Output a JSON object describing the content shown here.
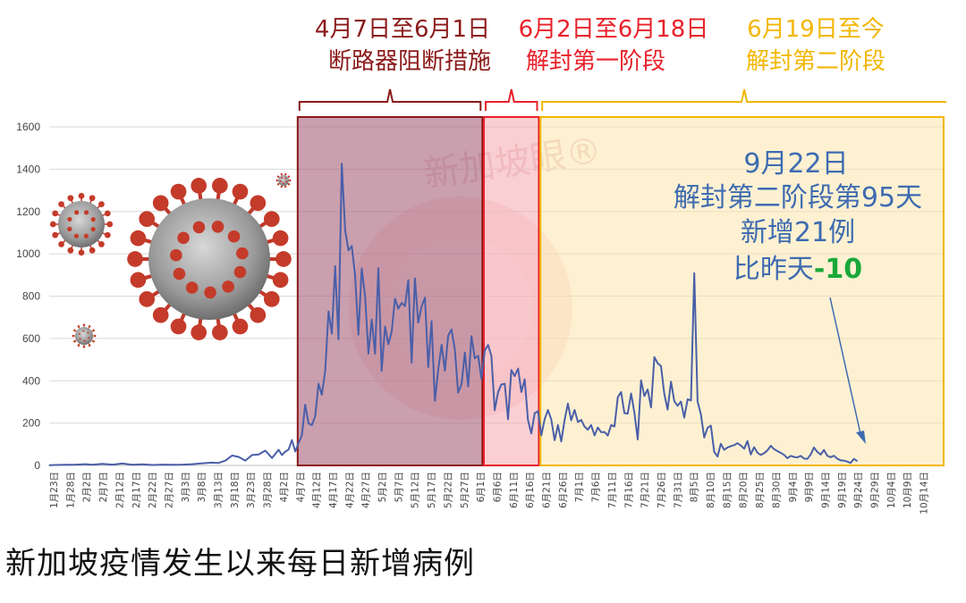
{
  "caption": "新加坡疫情发生以来每日新增病例",
  "watermark": "新加坡眼®",
  "phases": [
    {
      "line1": "4月7日至6月1日",
      "line2": "断路器阻断措施",
      "color": "#8b1a1a",
      "fill": "#a9647c"
    },
    {
      "line1": "6月2日至6月18日",
      "line2": "解封第一阶段",
      "color": "#e8212a",
      "fill": "#f4a7ae"
    },
    {
      "line1": "6月19日至今",
      "line2": "解封第二阶段",
      "color": "#f2b705",
      "fill": "#fbe3a6"
    }
  ],
  "annotation": {
    "date": "9月22日",
    "line2": "解封第二阶段第95天",
    "line3": "新增21例",
    "line4_prefix": "比昨天",
    "delta": "-10",
    "color": "#3e6bb0",
    "delta_color": "#1aa83a"
  },
  "virus_icons": [
    "coronavirus-icon"
  ],
  "chart_data": {
    "type": "line",
    "y_ticks": [
      0,
      200,
      400,
      600,
      800,
      1000,
      1200,
      1400,
      1600
    ],
    "ylim": [
      0,
      1600
    ],
    "x_tick_labels": [
      "1月23日",
      "1月28日",
      "2月2日",
      "2月7日",
      "2月12日",
      "2月17日",
      "2月22日",
      "2月27日",
      "3月3日",
      "3月8日",
      "3月13日",
      "3月18日",
      "3月23日",
      "3月28日",
      "4月2日",
      "4月7日",
      "4月12日",
      "4月17日",
      "4月22日",
      "4月27日",
      "5月2日",
      "5月7日",
      "5月12日",
      "5月17日",
      "5月22日",
      "5月27日",
      "6月1日",
      "6月6日",
      "6月11日",
      "6月16日",
      "6月21日",
      "6月26日",
      "7月1日",
      "7月6日",
      "7月11日",
      "7月16日",
      "7月21日",
      "7月26日",
      "7月31日",
      "8月5日",
      "8月10日",
      "8月15日",
      "8月20日",
      "8月25日",
      "8月30日",
      "9月4日",
      "9月9日",
      "9月14日",
      "9月19日",
      "9月24日",
      "9月29日",
      "10月4日",
      "10月9日",
      "10月14日"
    ],
    "x_start": "2020-01-23",
    "x_end": "2020-10-18",
    "grid": true,
    "series": [
      {
        "color": "#4a5fa8",
        "points": [
          [
            "2020-01-23",
            1
          ],
          [
            "2020-01-25",
            2
          ],
          [
            "2020-01-28",
            3
          ],
          [
            "2020-01-31",
            4
          ],
          [
            "2020-02-03",
            6
          ],
          [
            "2020-02-05",
            3
          ],
          [
            "2020-02-08",
            7
          ],
          [
            "2020-02-11",
            4
          ],
          [
            "2020-02-14",
            9
          ],
          [
            "2020-02-17",
            3
          ],
          [
            "2020-02-20",
            5
          ],
          [
            "2020-02-23",
            2
          ],
          [
            "2020-02-26",
            4
          ],
          [
            "2020-02-29",
            3
          ],
          [
            "2020-03-03",
            4
          ],
          [
            "2020-03-06",
            6
          ],
          [
            "2020-03-09",
            10
          ],
          [
            "2020-03-12",
            13
          ],
          [
            "2020-03-14",
            12
          ],
          [
            "2020-03-16",
            23
          ],
          [
            "2020-03-18",
            47
          ],
          [
            "2020-03-20",
            40
          ],
          [
            "2020-03-22",
            23
          ],
          [
            "2020-03-24",
            49
          ],
          [
            "2020-03-26",
            52
          ],
          [
            "2020-03-28",
            70
          ],
          [
            "2020-03-30",
            35
          ],
          [
            "2020-04-01",
            74
          ],
          [
            "2020-04-02",
            49
          ],
          [
            "2020-04-03",
            65
          ],
          [
            "2020-04-04",
            75
          ],
          [
            "2020-04-05",
            120
          ],
          [
            "2020-04-06",
            66
          ],
          [
            "2020-04-07",
            106
          ],
          [
            "2020-04-08",
            142
          ],
          [
            "2020-04-09",
            287
          ],
          [
            "2020-04-10",
            198
          ],
          [
            "2020-04-11",
            191
          ],
          [
            "2020-04-12",
            233
          ],
          [
            "2020-04-13",
            386
          ],
          [
            "2020-04-14",
            334
          ],
          [
            "2020-04-15",
            447
          ],
          [
            "2020-04-16",
            728
          ],
          [
            "2020-04-17",
            623
          ],
          [
            "2020-04-18",
            942
          ],
          [
            "2020-04-19",
            596
          ],
          [
            "2020-04-20",
            1426
          ],
          [
            "2020-04-21",
            1111
          ],
          [
            "2020-04-22",
            1016
          ],
          [
            "2020-04-23",
            1037
          ],
          [
            "2020-04-24",
            897
          ],
          [
            "2020-04-25",
            618
          ],
          [
            "2020-04-26",
            931
          ],
          [
            "2020-04-27",
            799
          ],
          [
            "2020-04-28",
            528
          ],
          [
            "2020-04-29",
            690
          ],
          [
            "2020-04-30",
            528
          ],
          [
            "2020-05-01",
            932
          ],
          [
            "2020-05-02",
            447
          ],
          [
            "2020-05-03",
            657
          ],
          [
            "2020-05-04",
            573
          ],
          [
            "2020-05-05",
            632
          ],
          [
            "2020-05-06",
            788
          ],
          [
            "2020-05-07",
            741
          ],
          [
            "2020-05-08",
            768
          ],
          [
            "2020-05-09",
            753
          ],
          [
            "2020-05-10",
            876
          ],
          [
            "2020-05-11",
            486
          ],
          [
            "2020-05-12",
            884
          ],
          [
            "2020-05-13",
            675
          ],
          [
            "2020-05-14",
            752
          ],
          [
            "2020-05-15",
            793
          ],
          [
            "2020-05-16",
            465
          ],
          [
            "2020-05-17",
            682
          ],
          [
            "2020-05-18",
            305
          ],
          [
            "2020-05-19",
            451
          ],
          [
            "2020-05-20",
            570
          ],
          [
            "2020-05-21",
            448
          ],
          [
            "2020-05-22",
            614
          ],
          [
            "2020-05-23",
            642
          ],
          [
            "2020-05-24",
            548
          ],
          [
            "2020-05-25",
            344
          ],
          [
            "2020-05-26",
            383
          ],
          [
            "2020-05-27",
            533
          ],
          [
            "2020-05-28",
            373
          ],
          [
            "2020-05-29",
            611
          ],
          [
            "2020-05-30",
            506
          ],
          [
            "2020-05-31",
            518
          ],
          [
            "2020-06-01",
            408
          ],
          [
            "2020-06-02",
            544
          ],
          [
            "2020-06-03",
            569
          ],
          [
            "2020-06-04",
            517
          ],
          [
            "2020-06-05",
            261
          ],
          [
            "2020-06-06",
            347
          ],
          [
            "2020-06-07",
            383
          ],
          [
            "2020-06-08",
            386
          ],
          [
            "2020-06-09",
            218
          ],
          [
            "2020-06-10",
            451
          ],
          [
            "2020-06-11",
            422
          ],
          [
            "2020-06-12",
            458
          ],
          [
            "2020-06-13",
            347
          ],
          [
            "2020-06-14",
            407
          ],
          [
            "2020-06-15",
            214
          ],
          [
            "2020-06-16",
            151
          ],
          [
            "2020-06-17",
            247
          ],
          [
            "2020-06-18",
            256
          ],
          [
            "2020-06-19",
            142
          ],
          [
            "2020-06-20",
            218
          ],
          [
            "2020-06-21",
            262
          ],
          [
            "2020-06-22",
            218
          ],
          [
            "2020-06-23",
            119
          ],
          [
            "2020-06-24",
            191
          ],
          [
            "2020-06-25",
            113
          ],
          [
            "2020-06-26",
            214
          ],
          [
            "2020-06-27",
            292
          ],
          [
            "2020-06-28",
            213
          ],
          [
            "2020-06-29",
            262
          ],
          [
            "2020-06-30",
            205
          ],
          [
            "2020-07-01",
            215
          ],
          [
            "2020-07-02",
            184
          ],
          [
            "2020-07-03",
            169
          ],
          [
            "2020-07-04",
            191
          ],
          [
            "2020-07-05",
            142
          ],
          [
            "2020-07-06",
            179
          ],
          [
            "2020-07-07",
            157
          ],
          [
            "2020-07-08",
            158
          ],
          [
            "2020-07-09",
            141
          ],
          [
            "2020-07-10",
            191
          ],
          [
            "2020-07-11",
            184
          ],
          [
            "2020-07-12",
            322
          ],
          [
            "2020-07-13",
            347
          ],
          [
            "2020-07-14",
            247
          ],
          [
            "2020-07-15",
            245
          ],
          [
            "2020-07-16",
            340
          ],
          [
            "2020-07-17",
            248
          ],
          [
            "2020-07-18",
            123
          ],
          [
            "2020-07-19",
            402
          ],
          [
            "2020-07-20",
            328
          ],
          [
            "2020-07-21",
            359
          ],
          [
            "2020-07-22",
            274
          ],
          [
            "2020-07-23",
            512
          ],
          [
            "2020-07-24",
            483
          ],
          [
            "2020-07-25",
            469
          ],
          [
            "2020-07-26",
            338
          ],
          [
            "2020-07-27",
            264
          ],
          [
            "2020-07-28",
            396
          ],
          [
            "2020-07-29",
            303
          ],
          [
            "2020-07-30",
            282
          ],
          [
            "2020-07-31",
            302
          ],
          [
            "2020-08-01",
            226
          ],
          [
            "2020-08-02",
            313
          ],
          [
            "2020-08-03",
            307
          ],
          [
            "2020-08-04",
            908
          ],
          [
            "2020-08-05",
            302
          ],
          [
            "2020-08-06",
            242
          ],
          [
            "2020-08-07",
            132
          ],
          [
            "2020-08-08",
            178
          ],
          [
            "2020-08-09",
            188
          ],
          [
            "2020-08-10",
            64
          ],
          [
            "2020-08-11",
            42
          ],
          [
            "2020-08-12",
            102
          ],
          [
            "2020-08-13",
            74
          ],
          [
            "2020-08-14",
            85
          ],
          [
            "2020-08-15",
            91
          ],
          [
            "2020-08-16",
            96
          ],
          [
            "2020-08-17",
            105
          ],
          [
            "2020-08-18",
            94
          ],
          [
            "2020-08-19",
            79
          ],
          [
            "2020-08-20",
            115
          ],
          [
            "2020-08-21",
            52
          ],
          [
            "2020-08-22",
            86
          ],
          [
            "2020-08-23",
            60
          ],
          [
            "2020-08-24",
            50
          ],
          [
            "2020-08-25",
            58
          ],
          [
            "2020-08-26",
            71
          ],
          [
            "2020-08-27",
            93
          ],
          [
            "2020-08-28",
            77
          ],
          [
            "2020-08-29",
            68
          ],
          [
            "2020-08-30",
            60
          ],
          [
            "2020-08-31",
            50
          ],
          [
            "2020-09-01",
            34
          ],
          [
            "2020-09-02",
            45
          ],
          [
            "2020-09-03",
            40
          ],
          [
            "2020-09-04",
            38
          ],
          [
            "2020-09-05",
            45
          ],
          [
            "2020-09-06",
            33
          ],
          [
            "2020-09-07",
            31
          ],
          [
            "2020-09-08",
            51
          ],
          [
            "2020-09-09",
            85
          ],
          [
            "2020-09-10",
            64
          ],
          [
            "2020-09-11",
            51
          ],
          [
            "2020-09-12",
            73
          ],
          [
            "2020-09-13",
            46
          ],
          [
            "2020-09-14",
            39
          ],
          [
            "2020-09-15",
            46
          ],
          [
            "2020-09-16",
            32
          ],
          [
            "2020-09-17",
            24
          ],
          [
            "2020-09-18",
            23
          ],
          [
            "2020-09-19",
            18
          ],
          [
            "2020-09-20",
            12
          ],
          [
            "2020-09-21",
            31
          ],
          [
            "2020-09-22",
            21
          ]
        ]
      }
    ],
    "regions": [
      {
        "from": "2020-04-07",
        "to": "2020-06-01",
        "label_index": 0
      },
      {
        "from": "2020-06-02",
        "to": "2020-06-18",
        "label_index": 1
      },
      {
        "from": "2020-06-19",
        "to": "2020-10-18",
        "label_index": 2
      }
    ]
  }
}
